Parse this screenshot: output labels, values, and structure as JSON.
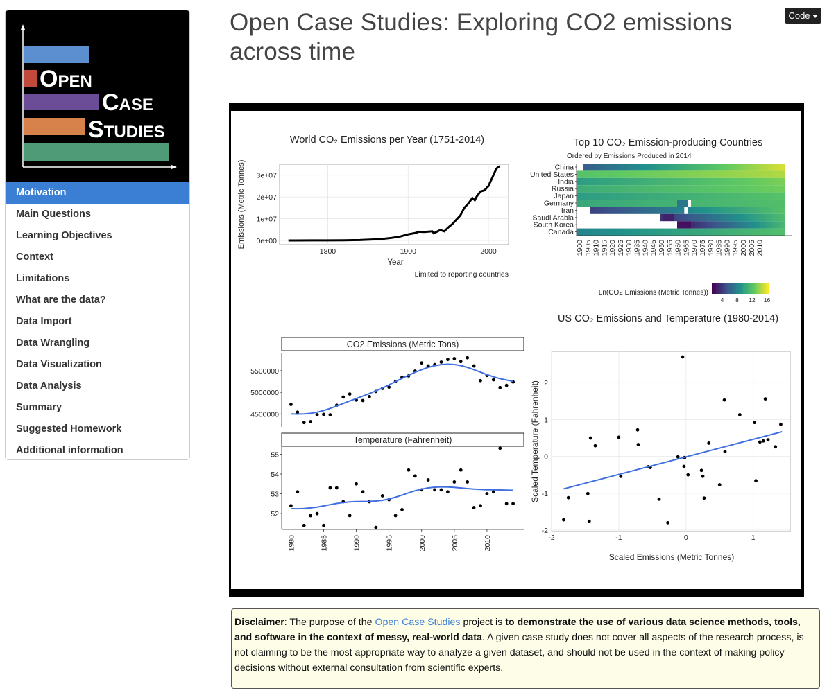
{
  "page": {
    "title": "Open Case Studies: Exploring CO2 emissions across time",
    "code_button": "Code"
  },
  "logo": {
    "line1": "Open",
    "line2": "Case",
    "line3": "Studies",
    "colors": [
      "#5b8fd0",
      "#c14a3c",
      "#6b4c96",
      "#d6824a",
      "#4f9a77"
    ]
  },
  "sidebar": {
    "items": [
      {
        "label": "Motivation",
        "active": true
      },
      {
        "label": "Main Questions"
      },
      {
        "label": "Learning Objectives"
      },
      {
        "label": "Context"
      },
      {
        "label": "Limitations"
      },
      {
        "label": "What are the data?"
      },
      {
        "label": "Data Import"
      },
      {
        "label": "Data Wrangling"
      },
      {
        "label": "Data Visualization"
      },
      {
        "label": "Data Analysis"
      },
      {
        "label": "Summary"
      },
      {
        "label": "Suggested Homework"
      },
      {
        "label": "Additional information"
      }
    ]
  },
  "chart_data": [
    {
      "type": "line",
      "title": "World  CO₂  Emissions per Year (1751-2014)",
      "xlabel": "Year",
      "ylabel": "Emissions (Metric Tonnes)",
      "caption": "Limited to reporting countries",
      "x_ticks": [
        1800,
        1900,
        2000
      ],
      "y_ticks": [
        "0e+00",
        "1e+07",
        "2e+07",
        "3e+07"
      ],
      "xlim": [
        1751,
        2014
      ],
      "ylim": [
        0,
        34000000
      ],
      "x": [
        1751,
        1760,
        1780,
        1800,
        1820,
        1840,
        1860,
        1870,
        1880,
        1890,
        1900,
        1910,
        1913,
        1920,
        1930,
        1932,
        1940,
        1945,
        1950,
        1955,
        1960,
        1965,
        1970,
        1975,
        1980,
        1983,
        1985,
        1990,
        1995,
        2000,
        2005,
        2008,
        2010,
        2012,
        2014
      ],
      "y": [
        10000,
        12000,
        20000,
        40000,
        80000,
        200000,
        500000,
        800000,
        1200000,
        1800000,
        2800000,
        3500000,
        4000000,
        3900000,
        4200000,
        3300000,
        4800000,
        4200000,
        6000000,
        7500000,
        9500000,
        11500000,
        15000000,
        17000000,
        19500000,
        18500000,
        20000000,
        22500000,
        23000000,
        25000000,
        29000000,
        31500000,
        33000000,
        33800000,
        34000000
      ],
      "grid": true
    },
    {
      "type": "heatmap",
      "title": "Top 10  CO₂ Emission-producing Countries",
      "subtitle": "Ordered by Emissions Produced in 2014",
      "rows": [
        "China",
        "United States",
        "India",
        "Russia",
        "Japan",
        "Germany",
        "Iran",
        "Saudi Arabia",
        "South Korea",
        "Canada"
      ],
      "x_ticks": [
        "1900",
        "1905",
        "1910",
        "1915",
        "1920",
        "1925",
        "1930",
        "1935",
        "1940",
        "1945",
        "1950",
        "1955",
        "1960",
        "1965",
        "1970",
        "1975",
        "1980",
        "1985",
        "1990",
        "1995",
        "2000",
        "2005",
        "2010"
      ],
      "legend_title": "Ln(CO2 Emissions (Metric Tonnes))",
      "legend_ticks": [
        "4",
        "8",
        "12",
        "16"
      ]
    },
    {
      "type": "scatter",
      "facet": "CO2 Emissions (Metric Tons)",
      "y_ticks": [
        "4500000",
        "5000000",
        "5500000"
      ],
      "ylim": [
        4200000,
        5900000
      ],
      "x": [
        1980,
        1981,
        1982,
        1983,
        1984,
        1985,
        1986,
        1987,
        1988,
        1989,
        1990,
        1991,
        1992,
        1993,
        1994,
        1995,
        1996,
        1997,
        1998,
        1999,
        2000,
        2001,
        2002,
        2003,
        2004,
        2005,
        2006,
        2007,
        2008,
        2009,
        2010,
        2011,
        2012,
        2013,
        2014
      ],
      "y": [
        4720000,
        4540000,
        4300000,
        4320000,
        4480000,
        4490000,
        4480000,
        4700000,
        4890000,
        4960000,
        4820000,
        4810000,
        4900000,
        5020000,
        5090000,
        5120000,
        5250000,
        5350000,
        5380000,
        5490000,
        5680000,
        5610000,
        5640000,
        5700000,
        5760000,
        5780000,
        5710000,
        5800000,
        5610000,
        5270000,
        5390000,
        5290000,
        5110000,
        5160000,
        5240000
      ]
    },
    {
      "type": "scatter",
      "facet": "Temperature (Fahrenheit)",
      "x_ticks": [
        "1980",
        "1985",
        "1990",
        "1995",
        "2000",
        "2005",
        "2010"
      ],
      "y_ticks": [
        "52",
        "53",
        "54",
        "55"
      ],
      "ylim": [
        51.2,
        55.4
      ],
      "x": [
        1980,
        1981,
        1982,
        1983,
        1984,
        1985,
        1986,
        1987,
        1988,
        1989,
        1990,
        1991,
        1992,
        1993,
        1994,
        1995,
        1996,
        1997,
        1998,
        1999,
        2000,
        2001,
        2002,
        2003,
        2004,
        2005,
        2006,
        2007,
        2008,
        2009,
        2010,
        2011,
        2012,
        2013,
        2014
      ],
      "y": [
        52.4,
        53.1,
        51.4,
        51.9,
        52.0,
        51.4,
        53.3,
        53.3,
        52.6,
        51.9,
        53.5,
        53.1,
        52.6,
        51.3,
        52.9,
        52.7,
        51.9,
        52.2,
        54.2,
        53.9,
        53.2,
        53.7,
        53.2,
        53.2,
        53.1,
        53.6,
        54.2,
        53.6,
        52.3,
        52.4,
        53.0,
        53.1,
        55.3,
        52.5,
        52.5
      ]
    },
    {
      "type": "scatter",
      "title": "US CO₂ Emissions and Temperature (1980-2014)",
      "xlabel": "Scaled Emissions (Metric Tonnes)",
      "ylabel": "Scaled Temperature (Fahrenheit)",
      "x_ticks": [
        "-2",
        "-1",
        "0",
        "1"
      ],
      "y_ticks": [
        "-2",
        "-1",
        "0",
        "1",
        "2"
      ],
      "xlim": [
        -2.0,
        1.5
      ],
      "ylim": [
        -2.0,
        2.9
      ],
      "x": [
        -1.82,
        -1.75,
        -1.46,
        -1.44,
        -1.42,
        -1.35,
        -1.0,
        -0.97,
        -0.72,
        -0.71,
        -0.56,
        -0.53,
        -0.4,
        -0.27,
        -0.12,
        -0.05,
        -0.03,
        0.03,
        0.23,
        0.25,
        0.27,
        0.34,
        0.5,
        0.57,
        0.58,
        0.8,
        1.02,
        1.04,
        1.1,
        1.15,
        1.18,
        1.22,
        1.33,
        1.41,
        -0.02
      ],
      "y": [
        -1.72,
        -1.12,
        -1.01,
        -1.76,
        0.5,
        0.29,
        0.52,
        -0.54,
        0.72,
        0.32,
        -0.28,
        -0.3,
        -1.16,
        -1.8,
        -0.01,
        2.7,
        -0.27,
        -0.5,
        -0.38,
        -0.54,
        -1.13,
        0.36,
        -0.77,
        1.53,
        0.13,
        1.13,
        0.92,
        -0.66,
        0.39,
        0.42,
        1.56,
        0.45,
        0.26,
        0.87,
        -0.03
      ]
    }
  ],
  "disclaimer": {
    "label": "Disclaimer",
    "text1": ": The purpose of the ",
    "link": "Open Case Studies",
    "text2": " project is ",
    "bold": "to demonstrate the use of various data science methods, tools, and software in the context of messy, real-world data",
    "text3": ". A given case study does not cover all aspects of the research process, is not claiming to be the most appropriate way to analyze a given dataset, and should not be used in the context of making policy decisions without external consultation from scientific experts."
  }
}
